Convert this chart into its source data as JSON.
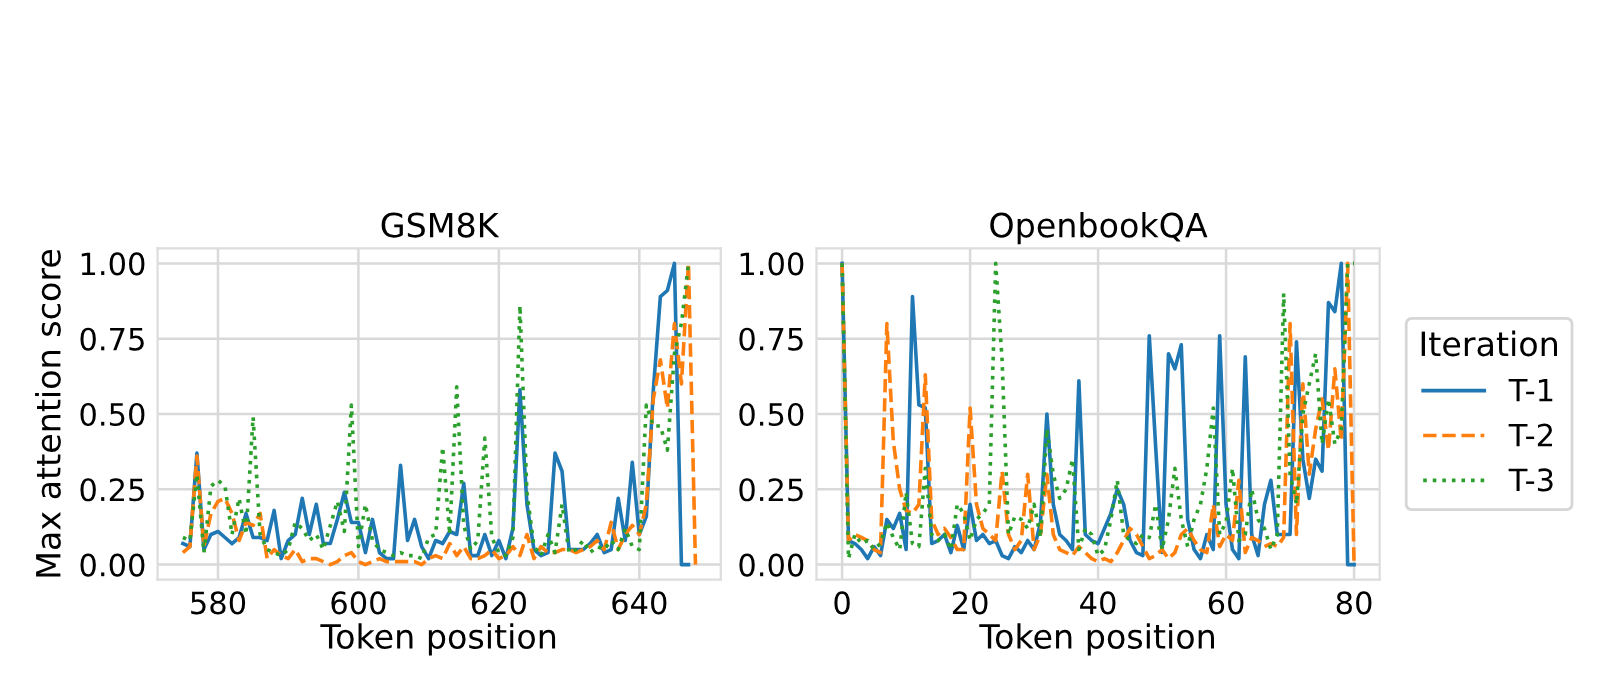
{
  "chart_data": [
    {
      "type": "line",
      "title": "GSM8K",
      "xlabel": "Token position",
      "ylabel": "Max attention score",
      "xlim": [
        571.4,
        651.6
      ],
      "xticks": [
        580,
        600,
        620,
        640
      ],
      "ylim": [
        -0.05,
        1.05
      ],
      "yticks": [
        {
          "value": 0,
          "label": "0.00"
        },
        {
          "value": 0.25,
          "label": "0.25"
        },
        {
          "value": 0.5,
          "label": "0.50"
        },
        {
          "value": 0.75,
          "label": "0.75"
        },
        {
          "value": 1,
          "label": "1.00"
        }
      ],
      "grid": true,
      "series": [
        {
          "color": "#1f77b4",
          "line_style": "solid",
          "x": [
            575,
            576,
            577,
            578,
            579,
            580,
            581,
            582,
            583,
            584,
            585,
            586,
            587,
            588,
            589,
            590,
            591,
            592,
            593,
            594,
            595,
            596,
            597,
            598,
            599,
            600,
            601,
            602,
            603,
            604,
            605,
            606,
            607,
            608,
            609,
            610,
            611,
            612,
            613,
            614,
            615,
            616,
            617,
            618,
            619,
            620,
            621,
            622,
            623,
            624,
            625,
            626,
            627,
            628,
            629,
            630,
            631,
            632,
            633,
            634,
            635,
            636,
            637,
            638,
            639,
            640,
            641,
            642,
            643,
            644,
            645,
            646,
            647
          ],
          "values": [
            0.07,
            0.06,
            0.37,
            0.05,
            0.1,
            0.11,
            0.09,
            0.07,
            0.09,
            0.17,
            0.09,
            0.09,
            0.08,
            0.18,
            0.02,
            0.08,
            0.1,
            0.22,
            0.1,
            0.2,
            0.07,
            0.07,
            0.15,
            0.24,
            0.14,
            0.14,
            0.04,
            0.15,
            0.04,
            0.02,
            0.02,
            0.33,
            0.08,
            0.15,
            0.06,
            0.02,
            0.08,
            0.07,
            0.11,
            0.1,
            0.27,
            0.03,
            0.03,
            0.1,
            0.03,
            0.08,
            0.02,
            0.12,
            0.58,
            0.2,
            0.05,
            0.03,
            0.04,
            0.37,
            0.31,
            0.05,
            0.05,
            0.05,
            0.07,
            0.1,
            0.04,
            0.05,
            0.22,
            0.08,
            0.34,
            0.1,
            0.16,
            0.58,
            0.89,
            0.91,
            1.0,
            0.0,
            0.0
          ]
        },
        {
          "color": "#ff7f0e",
          "line_style": "dashed",
          "x": [
            575,
            576,
            577,
            578,
            579,
            580,
            581,
            582,
            583,
            584,
            585,
            586,
            587,
            588,
            589,
            590,
            591,
            592,
            593,
            594,
            595,
            596,
            597,
            598,
            599,
            600,
            601,
            602,
            603,
            604,
            605,
            606,
            607,
            608,
            609,
            610,
            611,
            612,
            613,
            614,
            615,
            616,
            617,
            618,
            619,
            620,
            621,
            622,
            623,
            624,
            625,
            626,
            627,
            628,
            629,
            630,
            631,
            632,
            633,
            634,
            635,
            636,
            637,
            638,
            639,
            640,
            641,
            642,
            643,
            644,
            645,
            646,
            647,
            648
          ],
          "values": [
            0.04,
            0.06,
            0.36,
            0.06,
            0.17,
            0.21,
            0.22,
            0.17,
            0.08,
            0.14,
            0.13,
            0.17,
            0.02,
            0.05,
            0.03,
            0.02,
            0.05,
            0.01,
            0.02,
            0.02,
            0.01,
            0.0,
            0.01,
            0.03,
            0.04,
            0.01,
            0.0,
            0.01,
            0.02,
            0.01,
            0.01,
            0.01,
            0.01,
            0.01,
            0.0,
            0.02,
            0.03,
            0.02,
            0.07,
            0.03,
            0.06,
            0.02,
            0.02,
            0.03,
            0.05,
            0.02,
            0.03,
            0.06,
            0.03,
            0.1,
            0.02,
            0.06,
            0.04,
            0.04,
            0.05,
            0.05,
            0.04,
            0.05,
            0.06,
            0.08,
            0.05,
            0.14,
            0.05,
            0.1,
            0.13,
            0.1,
            0.2,
            0.55,
            0.68,
            0.52,
            0.8,
            0.6,
            1.0,
            0.0
          ]
        },
        {
          "color": "#2ca02c",
          "line_style": "dotted",
          "x": [
            575,
            576,
            577,
            578,
            579,
            580,
            581,
            582,
            583,
            584,
            585,
            586,
            587,
            588,
            589,
            590,
            591,
            592,
            593,
            594,
            595,
            596,
            597,
            598,
            599,
            600,
            601,
            602,
            603,
            604,
            605,
            606,
            607,
            608,
            609,
            610,
            611,
            612,
            613,
            614,
            615,
            616,
            617,
            618,
            619,
            620,
            621,
            622,
            623,
            624,
            625,
            626,
            627,
            628,
            629,
            630,
            631,
            632,
            633,
            634,
            635,
            636,
            637,
            638,
            639,
            640,
            641,
            642,
            643,
            644,
            645,
            646,
            647
          ],
          "values": [
            0.09,
            0.08,
            0.3,
            0.04,
            0.26,
            0.28,
            0.26,
            0.1,
            0.22,
            0.1,
            0.49,
            0.1,
            0.05,
            0.04,
            0.03,
            0.05,
            0.14,
            0.12,
            0.08,
            0.1,
            0.05,
            0.13,
            0.21,
            0.11,
            0.53,
            0.06,
            0.2,
            0.08,
            0.05,
            0.04,
            0.03,
            0.04,
            0.03,
            0.03,
            0.02,
            0.09,
            0.1,
            0.39,
            0.1,
            0.59,
            0.13,
            0.05,
            0.08,
            0.42,
            0.09,
            0.04,
            0.03,
            0.09,
            0.86,
            0.24,
            0.06,
            0.03,
            0.1,
            0.04,
            0.2,
            0.04,
            0.05,
            0.08,
            0.04,
            0.06,
            0.05,
            0.08,
            0.05,
            0.12,
            0.06,
            0.05,
            0.53,
            0.46,
            0.46,
            0.38,
            0.7,
            0.8,
            1.0
          ]
        }
      ]
    },
    {
      "type": "line",
      "title": "OpenbookQA",
      "xlabel": "Token position",
      "legend_title": "Iteration",
      "xlim": [
        -4,
        84
      ],
      "xticks": [
        0,
        20,
        40,
        60,
        80
      ],
      "ylim": [
        -0.05,
        1.05
      ],
      "yticks": [
        {
          "value": 0,
          "label": "0.00"
        },
        {
          "value": 0.25,
          "label": "0.25"
        },
        {
          "value": 0.5,
          "label": "0.50"
        },
        {
          "value": 0.75,
          "label": "0.75"
        },
        {
          "value": 1,
          "label": "1.00"
        }
      ],
      "grid": true,
      "legend": "right",
      "series": [
        {
          "name": "T-1",
          "color": "#1f77b4",
          "line_style": "solid",
          "x": [
            0,
            1,
            2,
            3,
            4,
            5,
            6,
            7,
            8,
            9,
            10,
            11,
            12,
            13,
            14,
            15,
            16,
            17,
            18,
            19,
            20,
            21,
            22,
            23,
            24,
            25,
            26,
            27,
            28,
            29,
            30,
            31,
            32,
            33,
            34,
            35,
            36,
            37,
            38,
            39,
            40,
            41,
            42,
            43,
            44,
            45,
            46,
            47,
            48,
            49,
            50,
            51,
            52,
            53,
            54,
            55,
            56,
            57,
            58,
            59,
            60,
            61,
            62,
            63,
            64,
            65,
            66,
            67,
            68,
            69,
            70,
            71,
            72,
            73,
            74,
            75,
            76,
            77,
            78,
            79,
            80
          ],
          "values": [
            1.0,
            0.08,
            0.07,
            0.05,
            0.02,
            0.06,
            0.03,
            0.15,
            0.12,
            0.17,
            0.05,
            0.89,
            0.53,
            0.52,
            0.07,
            0.08,
            0.1,
            0.04,
            0.13,
            0.05,
            0.2,
            0.08,
            0.1,
            0.07,
            0.08,
            0.03,
            0.02,
            0.06,
            0.04,
            0.08,
            0.05,
            0.14,
            0.5,
            0.2,
            0.1,
            0.08,
            0.05,
            0.61,
            0.1,
            0.08,
            0.07,
            0.12,
            0.17,
            0.25,
            0.2,
            0.08,
            0.04,
            0.03,
            0.76,
            0.39,
            0.04,
            0.7,
            0.65,
            0.73,
            0.15,
            0.05,
            0.02,
            0.1,
            0.05,
            0.76,
            0.2,
            0.05,
            0.02,
            0.69,
            0.1,
            0.03,
            0.2,
            0.28,
            0.1,
            0.1,
            0.1,
            0.74,
            0.35,
            0.22,
            0.35,
            0.31,
            0.87,
            0.84,
            1.0,
            0.0,
            0.0
          ]
        },
        {
          "name": "T-2",
          "color": "#ff7f0e",
          "line_style": "dashed",
          "x": [
            0,
            1,
            2,
            3,
            4,
            5,
            6,
            7,
            8,
            9,
            10,
            11,
            12,
            13,
            14,
            15,
            16,
            17,
            18,
            19,
            20,
            21,
            22,
            23,
            24,
            25,
            26,
            27,
            28,
            29,
            30,
            31,
            32,
            33,
            34,
            35,
            36,
            37,
            38,
            39,
            40,
            41,
            42,
            43,
            44,
            45,
            46,
            47,
            48,
            49,
            50,
            51,
            52,
            53,
            54,
            55,
            56,
            57,
            58,
            59,
            60,
            61,
            62,
            63,
            64,
            65,
            66,
            67,
            68,
            69,
            70,
            71,
            72,
            73,
            74,
            75,
            76,
            77,
            78,
            79,
            80
          ],
          "values": [
            1.0,
            0.08,
            0.1,
            0.09,
            0.08,
            0.05,
            0.04,
            0.8,
            0.41,
            0.25,
            0.18,
            0.17,
            0.2,
            0.63,
            0.15,
            0.1,
            0.12,
            0.09,
            0.05,
            0.05,
            0.52,
            0.2,
            0.12,
            0.1,
            0.08,
            0.31,
            0.1,
            0.05,
            0.08,
            0.3,
            0.05,
            0.1,
            0.3,
            0.1,
            0.05,
            0.04,
            0.03,
            0.06,
            0.04,
            0.02,
            0.01,
            0.02,
            0.01,
            0.04,
            0.08,
            0.12,
            0.1,
            0.06,
            0.02,
            0.03,
            0.05,
            0.02,
            0.04,
            0.1,
            0.12,
            0.08,
            0.05,
            0.04,
            0.2,
            0.06,
            0.1,
            0.08,
            0.28,
            0.04,
            0.09,
            0.08,
            0.06,
            0.07,
            0.06,
            0.09,
            0.8,
            0.1,
            0.6,
            0.3,
            0.45,
            0.55,
            0.38,
            0.65,
            0.41,
            1.0,
            0.0
          ]
        },
        {
          "name": "T-3",
          "color": "#2ca02c",
          "line_style": "dotted",
          "x": [
            0,
            1,
            2,
            3,
            4,
            5,
            6,
            7,
            8,
            9,
            10,
            11,
            12,
            13,
            14,
            15,
            16,
            17,
            18,
            19,
            20,
            21,
            22,
            23,
            24,
            25,
            26,
            27,
            28,
            29,
            30,
            31,
            32,
            33,
            34,
            35,
            36,
            37,
            38,
            39,
            40,
            41,
            42,
            43,
            44,
            45,
            46,
            47,
            48,
            49,
            50,
            51,
            52,
            53,
            54,
            55,
            56,
            57,
            58,
            59,
            60,
            61,
            62,
            63,
            64,
            65,
            66,
            67,
            68,
            69,
            70,
            71,
            72,
            73,
            74,
            75,
            76,
            77,
            78,
            79,
            80
          ],
          "values": [
            1.0,
            0.02,
            0.1,
            0.07,
            0.08,
            0.05,
            0.07,
            0.14,
            0.09,
            0.05,
            0.24,
            0.07,
            0.06,
            0.32,
            0.1,
            0.08,
            0.1,
            0.05,
            0.2,
            0.17,
            0.08,
            0.15,
            0.17,
            0.2,
            1.0,
            0.68,
            0.1,
            0.16,
            0.15,
            0.12,
            0.2,
            0.09,
            0.45,
            0.3,
            0.22,
            0.25,
            0.35,
            0.05,
            0.12,
            0.1,
            0.03,
            0.05,
            0.15,
            0.28,
            0.1,
            0.08,
            0.07,
            0.1,
            0.09,
            0.2,
            0.05,
            0.15,
            0.32,
            0.15,
            0.06,
            0.15,
            0.2,
            0.32,
            0.52,
            0.1,
            0.14,
            0.32,
            0.08,
            0.1,
            0.25,
            0.15,
            0.12,
            0.05,
            0.1,
            0.9,
            0.3,
            0.2,
            0.5,
            0.6,
            0.7,
            0.4,
            0.55,
            0.4,
            0.45,
            1.0,
            1.0
          ]
        }
      ]
    }
  ]
}
